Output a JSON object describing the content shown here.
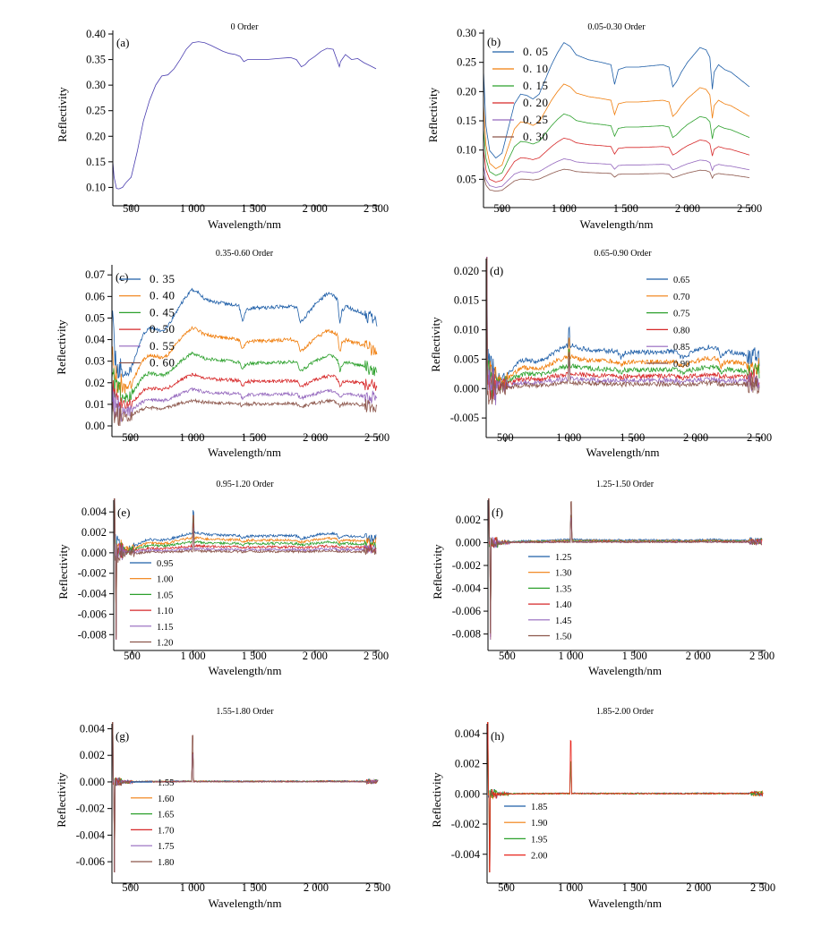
{
  "chart_data": [
    {
      "type": "line",
      "label": "(a)",
      "title": "0 Order",
      "xlabel": "Wavelength/nm",
      "ylabel": "Reflectivity",
      "xlim": [
        350,
        2500
      ],
      "ylim": [
        0.085,
        0.4
      ],
      "xticks": [
        500,
        1000,
        1500,
        2000,
        2500
      ],
      "xtick_labels": [
        "500",
        "1 000",
        "1 500",
        "2 000",
        "2 500"
      ],
      "yticks": [
        0.1,
        0.15,
        0.2,
        0.25,
        0.3,
        0.35,
        0.4
      ],
      "ytick_labels": [
        "0.10",
        "0.15",
        "0.20",
        "0.25",
        "0.30",
        "0.35",
        "0.40"
      ],
      "legend": "none",
      "series": [
        {
          "color": "#4b3fb0",
          "x": [
            350,
            360,
            380,
            400,
            430,
            460,
            500,
            550,
            600,
            650,
            700,
            750,
            800,
            850,
            900,
            950,
            1000,
            1050,
            1100,
            1150,
            1200,
            1250,
            1300,
            1350,
            1390,
            1420,
            1450,
            1500,
            1600,
            1700,
            1800,
            1850,
            1890,
            1920,
            1950,
            2000,
            2050,
            2100,
            2150,
            2180,
            2200,
            2210,
            2250,
            2300,
            2350,
            2400,
            2450,
            2500
          ],
          "y": [
            0.15,
            0.12,
            0.098,
            0.097,
            0.1,
            0.11,
            0.12,
            0.17,
            0.23,
            0.27,
            0.3,
            0.318,
            0.32,
            0.332,
            0.35,
            0.37,
            0.383,
            0.385,
            0.383,
            0.378,
            0.372,
            0.366,
            0.362,
            0.36,
            0.356,
            0.346,
            0.35,
            0.35,
            0.35,
            0.352,
            0.354,
            0.35,
            0.336,
            0.34,
            0.348,
            0.356,
            0.366,
            0.372,
            0.37,
            0.35,
            0.336,
            0.346,
            0.36,
            0.35,
            0.352,
            0.344,
            0.338,
            0.332
          ]
        }
      ]
    },
    {
      "type": "line",
      "label": "(b)",
      "title": "0.05-0.30 Order",
      "xlabel": "Wavelength/nm",
      "ylabel": "Reflectivity",
      "xlim": [
        350,
        2500
      ],
      "ylim": [
        0.02,
        0.3
      ],
      "xticks": [
        500,
        1000,
        1500,
        2000,
        2500
      ],
      "xtick_labels": [
        "500",
        "1 000",
        "1 500",
        "2 000",
        "2 500"
      ],
      "yticks": [
        0.05,
        0.1,
        0.15,
        0.2,
        0.25,
        0.3
      ],
      "ytick_labels": [
        "0.05",
        "0.10",
        "0.15",
        "0.20",
        "0.25",
        "0.30"
      ],
      "legend": "top-left",
      "noise": 0,
      "series": [
        {
          "name": "0. 05",
          "color": "#1f5fa8",
          "base": 0.078,
          "scale": 0.21
        },
        {
          "name": "0. 10",
          "color": "#f07d0b",
          "base": 0.062,
          "scale": 0.154
        },
        {
          "name": "0. 15",
          "color": "#2ca02c",
          "base": 0.052,
          "scale": 0.112
        },
        {
          "name": "0. 20",
          "color": "#d62728",
          "base": 0.042,
          "scale": 0.08
        },
        {
          "name": "0. 25",
          "color": "#9467bd",
          "base": 0.034,
          "scale": 0.052
        },
        {
          "name": "0. 30",
          "color": "#8c564b",
          "base": 0.028,
          "scale": 0.04
        }
      ]
    },
    {
      "type": "line",
      "label": "(c)",
      "title": "0.35-0.60 Order",
      "xlabel": "Wavelength/nm",
      "ylabel": "Reflectivity",
      "xlim": [
        350,
        2500
      ],
      "ylim": [
        0.0,
        0.073
      ],
      "xticks": [
        500,
        1000,
        1500,
        2000,
        2500
      ],
      "xtick_labels": [
        "500",
        "1 000",
        "1 500",
        "2 000",
        "2 500"
      ],
      "yticks": [
        0.0,
        0.01,
        0.02,
        0.03,
        0.04,
        0.05,
        0.06,
        0.07
      ],
      "ytick_labels": [
        "0.00",
        "0.01",
        "0.02",
        "0.03",
        "0.04",
        "0.05",
        "0.06",
        "0.07"
      ],
      "legend": "top-left",
      "noise": 0.0008,
      "series": [
        {
          "name": "0. 35",
          "color": "#1f5fa8",
          "base": 0.022,
          "scale": 0.042
        },
        {
          "name": "0. 40",
          "color": "#f07d0b",
          "base": 0.016,
          "scale": 0.03
        },
        {
          "name": "0. 45",
          "color": "#2ca02c",
          "base": 0.012,
          "scale": 0.022
        },
        {
          "name": "0. 50",
          "color": "#d62728",
          "base": 0.009,
          "scale": 0.015
        },
        {
          "name": "0. 55",
          "color": "#9467bd",
          "base": 0.006,
          "scale": 0.011
        },
        {
          "name": "0. 60",
          "color": "#8c564b",
          "base": 0.004,
          "scale": 0.008
        }
      ]
    },
    {
      "type": "line",
      "label": "(d)",
      "title": "0.65-0.90 Order",
      "xlabel": "Wavelength/nm",
      "ylabel": "Reflectivity",
      "xlim": [
        350,
        2500
      ],
      "ylim": [
        -0.0065,
        0.0215
      ],
      "xticks": [
        500,
        1000,
        1500,
        2000,
        2500
      ],
      "xtick_labels": [
        "500",
        "1 000",
        "1 500",
        "2 000",
        "2 500"
      ],
      "yticks": [
        -0.005,
        0.0,
        0.005,
        0.01,
        0.015,
        0.02
      ],
      "ytick_labels": [
        "-0.005",
        "0.000",
        "0.005",
        "0.010",
        "0.015",
        "0.020"
      ],
      "legend": "top-right",
      "noise": 0.0004,
      "series": [
        {
          "name": "0.65",
          "color": "#1f5fa8",
          "base": 0.0015,
          "scale": 0.006
        },
        {
          "name": "0.70",
          "color": "#f07d0b",
          "base": 0.001,
          "scale": 0.0045
        },
        {
          "name": "0.75",
          "color": "#2ca02c",
          "base": 0.0007,
          "scale": 0.0032
        },
        {
          "name": "0.80",
          "color": "#d62728",
          "base": 0.0004,
          "scale": 0.0022
        },
        {
          "name": "0.85",
          "color": "#9467bd",
          "base": 0.0002,
          "scale": 0.0015
        },
        {
          "name": "0.90",
          "color": "#8c564b",
          "base": 0.0,
          "scale": 0.001
        }
      ]
    },
    {
      "type": "line",
      "label": "(e)",
      "title": "0.95-1.20 Order",
      "xlabel": "Wavelength/nm",
      "ylabel": "Reflectivity",
      "xlim": [
        350,
        2500
      ],
      "ylim": [
        -0.0085,
        0.0048
      ],
      "xticks": [
        500,
        1000,
        1500,
        2000,
        2500
      ],
      "xtick_labels": [
        "500",
        "1 000",
        "1 500",
        "2 000",
        "2 500"
      ],
      "yticks": [
        -0.008,
        -0.006,
        -0.004,
        -0.002,
        0.0,
        0.002,
        0.004
      ],
      "ytick_labels": [
        "-0.008",
        "-0.006",
        "-0.004",
        "-0.002",
        "0.000",
        "0.002",
        "0.004"
      ],
      "legend": "left",
      "noise": 0.00012,
      "series": [
        {
          "name": "0.95",
          "color": "#1f5fa8",
          "base": 0.0004,
          "scale": 0.0016
        },
        {
          "name": "1.00",
          "color": "#f07d0b",
          "base": 0.0003,
          "scale": 0.0012
        },
        {
          "name": "1.05",
          "color": "#2ca02c",
          "base": 0.0002,
          "scale": 0.0009
        },
        {
          "name": "1.10",
          "color": "#d62728",
          "base": 0.0001,
          "scale": 0.0006
        },
        {
          "name": "1.15",
          "color": "#9467bd",
          "base": 0.0,
          "scale": 0.0004
        },
        {
          "name": "1.20",
          "color": "#8c564b",
          "base": -0.0001,
          "scale": 0.0003
        }
      ]
    },
    {
      "type": "line",
      "label": "(f)",
      "title": "1.25-1.50 Order",
      "xlabel": "Wavelength/nm",
      "ylabel": "Reflectivity",
      "xlim": [
        350,
        2500
      ],
      "ylim": [
        -0.0085,
        0.0034
      ],
      "xticks": [
        500,
        1000,
        1500,
        2000,
        2500
      ],
      "xtick_labels": [
        "500",
        "1 000",
        "1 500",
        "2 000",
        "2 500"
      ],
      "yticks": [
        -0.008,
        -0.006,
        -0.004,
        -0.002,
        0.0,
        0.002
      ],
      "ytick_labels": [
        "-0.008",
        "-0.006",
        "-0.004",
        "-0.002",
        "0.000",
        "0.002"
      ],
      "legend": "left",
      "noise": 6e-05,
      "series": [
        {
          "name": "1.25",
          "color": "#1f5fa8",
          "base": 0.0,
          "scale": 0.0003
        },
        {
          "name": "1.30",
          "color": "#f07d0b",
          "base": 0.0,
          "scale": 0.0002
        },
        {
          "name": "1.35",
          "color": "#2ca02c",
          "base": 0.0,
          "scale": 0.00015
        },
        {
          "name": "1.40",
          "color": "#d62728",
          "base": 0.0,
          "scale": 0.0001
        },
        {
          "name": "1.45",
          "color": "#9467bd",
          "base": 0.0,
          "scale": 7e-05
        },
        {
          "name": "1.50",
          "color": "#8c564b",
          "base": 0.0,
          "scale": 5e-05
        }
      ]
    },
    {
      "type": "line",
      "label": "(g)",
      "title": "1.55-1.80 Order",
      "xlabel": "Wavelength/nm",
      "ylabel": "Reflectivity",
      "xlim": [
        350,
        2500
      ],
      "ylim": [
        -0.0068,
        0.0041
      ],
      "xticks": [
        500,
        1000,
        1500,
        2000,
        2500
      ],
      "xtick_labels": [
        "500",
        "1 000",
        "1 500",
        "2 000",
        "2 500"
      ],
      "yticks": [
        -0.006,
        -0.004,
        -0.002,
        0.0,
        0.002,
        0.004
      ],
      "ytick_labels": [
        "-0.006",
        "-0.004",
        "-0.002",
        "0.000",
        "0.002",
        "0.004"
      ],
      "legend": "left",
      "noise": 4e-05,
      "series": [
        {
          "name": "1.55",
          "color": "#1f5fa8",
          "base": 0.0,
          "scale": 8e-05
        },
        {
          "name": "1.60",
          "color": "#f07d0b",
          "base": 0.0,
          "scale": 6e-05
        },
        {
          "name": "1.65",
          "color": "#2ca02c",
          "base": 0.0,
          "scale": 5e-05
        },
        {
          "name": "1.70",
          "color": "#d62728",
          "base": 0.0,
          "scale": 4e-05
        },
        {
          "name": "1.75",
          "color": "#9467bd",
          "base": 0.0,
          "scale": 3e-05
        },
        {
          "name": "1.80",
          "color": "#8c564b",
          "base": 0.0,
          "scale": 2e-05
        }
      ]
    },
    {
      "type": "line",
      "label": "(h)",
      "title": "1.85-2.00 Order",
      "xlabel": "Wavelength/nm",
      "ylabel": "Reflectivity",
      "xlim": [
        350,
        2500
      ],
      "ylim": [
        -0.0052,
        0.0044
      ],
      "xticks": [
        500,
        1000,
        1500,
        2000,
        2500
      ],
      "xtick_labels": [
        "500",
        "1 000",
        "1 500",
        "2 000",
        "2 500"
      ],
      "yticks": [
        -0.004,
        -0.002,
        0.0,
        0.002,
        0.004
      ],
      "ytick_labels": [
        "-0.004",
        "-0.002",
        "0.000",
        "0.002",
        "0.004"
      ],
      "legend": "left",
      "noise": 4e-05,
      "series": [
        {
          "name": "1.85",
          "color": "#1f5fa8",
          "base": 0.0,
          "scale": 4e-05
        },
        {
          "name": "1.90",
          "color": "#f07d0b",
          "base": 0.0,
          "scale": 3e-05
        },
        {
          "name": "1.95",
          "color": "#2ca02c",
          "base": 0.0,
          "scale": 2e-05
        },
        {
          "name": "2.00",
          "color": "#e8261d",
          "base": 0.0,
          "scale": 2e-05
        }
      ]
    }
  ]
}
